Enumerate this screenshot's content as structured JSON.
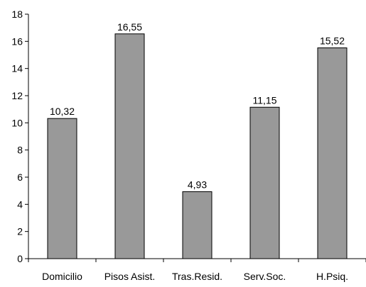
{
  "chart_data": {
    "type": "bar",
    "categories": [
      "Domicilio",
      "Pisos Asist.",
      "Tras.Resid.",
      "Serv.Soc.",
      "H.Psiq."
    ],
    "values": [
      10.32,
      16.55,
      4.93,
      11.15,
      15.52
    ],
    "value_labels": [
      "10,32",
      "16,55",
      "4,93",
      "11,15",
      "15,52"
    ],
    "ylim": [
      0,
      18
    ],
    "yticks": [
      0,
      2,
      4,
      6,
      8,
      10,
      12,
      14,
      16,
      18
    ],
    "ytick_labels": [
      "0",
      "2",
      "4",
      "6",
      "8",
      "10",
      "12",
      "14",
      "16",
      "18"
    ],
    "grid": false,
    "title": "",
    "xlabel": "",
    "ylabel": "",
    "colors": {
      "bar_fill": "#999999",
      "bar_stroke": "#000000",
      "axis": "#000000"
    }
  }
}
